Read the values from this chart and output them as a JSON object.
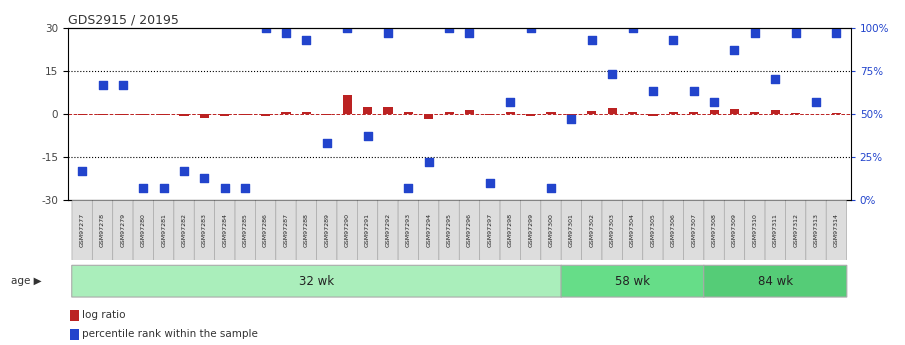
{
  "title": "GDS2915 / 20195",
  "samples": [
    "GSM97277",
    "GSM97278",
    "GSM97279",
    "GSM97280",
    "GSM97281",
    "GSM97282",
    "GSM97283",
    "GSM97284",
    "GSM97285",
    "GSM97286",
    "GSM97287",
    "GSM97288",
    "GSM97289",
    "GSM97290",
    "GSM97291",
    "GSM97292",
    "GSM97293",
    "GSM97294",
    "GSM97295",
    "GSM97296",
    "GSM97297",
    "GSM97298",
    "GSM97299",
    "GSM97300",
    "GSM97301",
    "GSM97302",
    "GSM97303",
    "GSM97304",
    "GSM97305",
    "GSM97306",
    "GSM97307",
    "GSM97308",
    "GSM97309",
    "GSM97310",
    "GSM97311",
    "GSM97312",
    "GSM97313",
    "GSM97314"
  ],
  "log_ratio": [
    -0.3,
    -0.4,
    -0.3,
    -0.5,
    -0.4,
    -0.6,
    -1.5,
    -0.8,
    -0.5,
    -0.8,
    0.5,
    0.8,
    -0.5,
    6.5,
    2.5,
    2.5,
    0.8,
    -1.8,
    0.5,
    1.2,
    -0.5,
    0.5,
    -0.8,
    0.5,
    -3.5,
    1.0,
    2.0,
    0.5,
    -0.8,
    0.8,
    0.5,
    1.5,
    1.8,
    0.8,
    1.2,
    0.2,
    -0.2,
    0.3
  ],
  "percentile_pct": [
    17,
    67,
    67,
    7,
    7,
    17,
    13,
    7,
    7,
    100,
    97,
    93,
    33,
    100,
    37,
    97,
    7,
    22,
    100,
    97,
    10,
    57,
    100,
    7,
    47,
    93,
    73,
    100,
    63,
    93,
    63,
    57,
    87,
    97,
    70,
    97,
    57,
    97
  ],
  "groups": [
    {
      "label": "32 wk",
      "start": 0,
      "end": 24,
      "color": "#aaeebb"
    },
    {
      "label": "58 wk",
      "start": 24,
      "end": 31,
      "color": "#66dd88"
    },
    {
      "label": "84 wk",
      "start": 31,
      "end": 38,
      "color": "#55cc77"
    }
  ],
  "left_ylim": [
    -30,
    30
  ],
  "left_yticks": [
    -30,
    -15,
    0,
    15,
    30
  ],
  "right_ylim": [
    0,
    100
  ],
  "right_yticks": [
    0,
    25,
    50,
    75,
    100
  ],
  "right_yticklabels": [
    "0%",
    "25%",
    "50%",
    "75%",
    "100%"
  ],
  "bar_color": "#bb2222",
  "dot_color": "#2244cc",
  "bg_color": "#ffffff",
  "age_label": "age",
  "legend_items": [
    {
      "color": "#bb2222",
      "label": "log ratio"
    },
    {
      "color": "#2244cc",
      "label": "percentile rank within the sample"
    }
  ]
}
